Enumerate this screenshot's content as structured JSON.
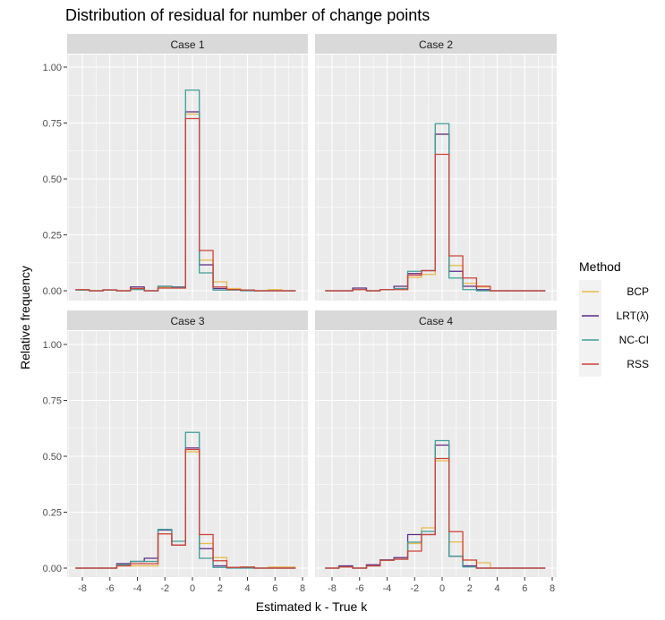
{
  "chart_data": {
    "type": "line",
    "subtype": "step-histogram",
    "title": "Distribution of residual for number of change points",
    "xlabel": "Estimated k - True k",
    "ylabel": "Relative frequency",
    "xlim": [
      -8.5,
      8.5
    ],
    "ylim": [
      0,
      1.05
    ],
    "x_ticks": [
      -8,
      -6,
      -4,
      -2,
      0,
      2,
      4,
      6,
      8
    ],
    "y_ticks": [
      0,
      0.25,
      0.5,
      0.75,
      1.0
    ],
    "y_tick_labels": [
      "0.00",
      "0.25",
      "0.50",
      "0.75",
      "1.00"
    ],
    "grid": true,
    "legend": {
      "title": "Method",
      "position": "right"
    },
    "x": [
      -8,
      -7,
      -6,
      -5,
      -4,
      -3,
      -2,
      -1,
      0,
      1,
      2,
      3,
      4,
      5,
      6,
      7
    ],
    "methods": [
      {
        "name": "BCP",
        "color": "#E9B949"
      },
      {
        "name": "LRT(λ̂)",
        "color": "#5E2B86"
      },
      {
        "name": "NC-CI",
        "color": "#3E9E98"
      },
      {
        "name": "RSS",
        "color": "#CF4238"
      }
    ],
    "panels": [
      {
        "title": "Case 1",
        "series": [
          {
            "name": "BCP",
            "values": [
              0.004,
              0,
              0.003,
              0,
              0.01,
              0,
              0.015,
              0.012,
              0.79,
              0.137,
              0.04,
              0.01,
              0.003,
              0,
              0.005,
              0
            ]
          },
          {
            "name": "LRT(λ̂)",
            "values": [
              0.004,
              0,
              0.004,
              0,
              0.017,
              0,
              0.02,
              0.017,
              0.8,
              0.116,
              0.01,
              0.005,
              0.003,
              0,
              0,
              0
            ]
          },
          {
            "name": "NC-CI",
            "values": [
              0.003,
              0,
              0.003,
              0,
              0.005,
              0,
              0.02,
              0.015,
              0.897,
              0.08,
              0.003,
              0.003,
              0,
              0,
              0,
              0
            ]
          },
          {
            "name": "RSS",
            "values": [
              0.005,
              0,
              0.004,
              0,
              0.01,
              0,
              0.012,
              0.012,
              0.77,
              0.18,
              0.017,
              0.005,
              0.003,
              0,
              0,
              0
            ]
          }
        ]
      },
      {
        "title": "Case 2",
        "series": [
          {
            "name": "BCP",
            "values": [
              0,
              0,
              0.005,
              0,
              0.005,
              0.01,
              0.06,
              0.073,
              0.7,
              0.113,
              0.033,
              0.017,
              0,
              0,
              0,
              0
            ]
          },
          {
            "name": "LRT(λ̂)",
            "values": [
              0,
              0,
              0.012,
              0,
              0.005,
              0.02,
              0.077,
              0.09,
              0.7,
              0.087,
              0.02,
              0.005,
              0,
              0,
              0,
              0
            ]
          },
          {
            "name": "NC-CI",
            "values": [
              0,
              0,
              0.005,
              0,
              0.005,
              0.01,
              0.087,
              0.09,
              0.747,
              0.057,
              0.005,
              0,
              0,
              0,
              0,
              0
            ]
          },
          {
            "name": "RSS",
            "values": [
              0,
              0,
              0.005,
              0,
              0.005,
              0.005,
              0.07,
              0.09,
              0.61,
              0.156,
              0.057,
              0.02,
              0,
              0,
              0,
              0
            ]
          }
        ]
      },
      {
        "title": "Case 3",
        "series": [
          {
            "name": "BCP",
            "values": [
              0,
              0,
              0,
              0.01,
              0.01,
              0.01,
              0.153,
              0.103,
              0.52,
              0.11,
              0.047,
              0.003,
              0.005,
              0,
              0.005,
              0.005
            ]
          },
          {
            "name": "LRT(λ̂)",
            "values": [
              0,
              0,
              0,
              0.02,
              0.03,
              0.044,
              0.17,
              0.103,
              0.537,
              0.087,
              0.01,
              0.003,
              0.003,
              0,
              0,
              0
            ]
          },
          {
            "name": "NC-CI",
            "values": [
              0,
              0,
              0,
              0.015,
              0.03,
              0.03,
              0.173,
              0.12,
              0.607,
              0.044,
              0.003,
              0,
              0,
              0,
              0,
              0
            ]
          },
          {
            "name": "RSS",
            "values": [
              0,
              0,
              0,
              0.01,
              0.02,
              0.02,
              0.153,
              0.103,
              0.53,
              0.15,
              0.033,
              0.003,
              0.005,
              0,
              0,
              0
            ]
          }
        ]
      },
      {
        "title": "Case 4",
        "series": [
          {
            "name": "BCP",
            "values": [
              0,
              0.005,
              0,
              0.01,
              0.035,
              0.04,
              0.11,
              0.18,
              0.48,
              0.117,
              0.036,
              0.024,
              0,
              0,
              0,
              0
            ]
          },
          {
            "name": "LRT(λ̂)",
            "values": [
              0,
              0.01,
              0,
              0.015,
              0.037,
              0.047,
              0.15,
              0.15,
              0.55,
              0.053,
              0.01,
              0,
              0,
              0,
              0,
              0
            ]
          },
          {
            "name": "NC-CI",
            "values": [
              0,
              0.005,
              0,
              0.01,
              0.035,
              0.04,
              0.116,
              0.164,
              0.57,
              0.053,
              0.005,
              0,
              0,
              0,
              0,
              0
            ]
          },
          {
            "name": "RSS",
            "values": [
              0,
              0.005,
              0,
              0.01,
              0.035,
              0.04,
              0.076,
              0.15,
              0.49,
              0.163,
              0.036,
              0,
              0,
              0,
              0,
              0
            ]
          }
        ]
      }
    ]
  }
}
